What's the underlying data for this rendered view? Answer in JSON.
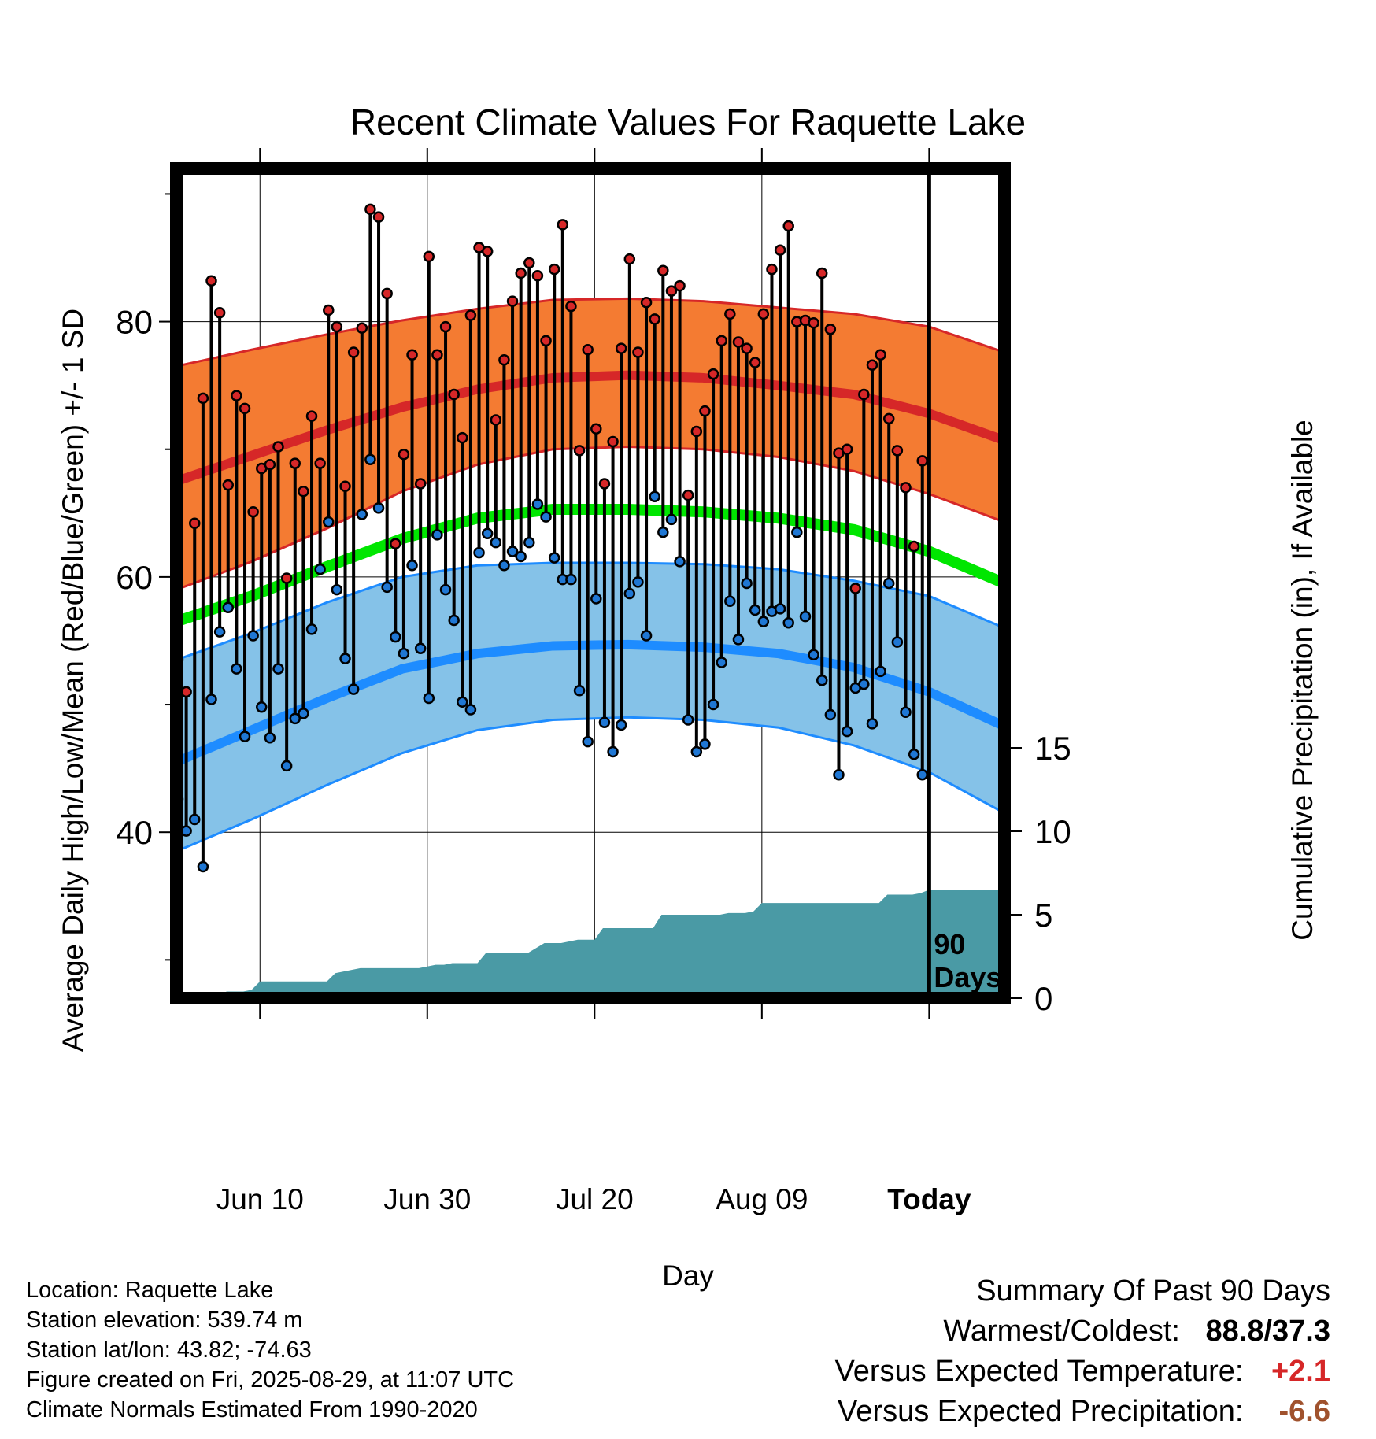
{
  "chart_data": {
    "type": "line",
    "title": "Recent Climate Values For Raquette Lake",
    "xlabel": "Day",
    "ylabel_left": "Average Daily High/Low/Mean (Red/Blue/Green) +/- 1 SD",
    "ylabel_right": "Cumulative Precipitation (in), If Available",
    "y_left_ticks": [
      "40",
      "60",
      "80"
    ],
    "y_right_ticks": [
      "0",
      "5",
      "10",
      "15"
    ],
    "x_tick_labels": [
      "Jun 10",
      "Jun 30",
      "Jul 20",
      "Aug 09",
      "Today"
    ],
    "today_marker": "90 Days",
    "ylim_left": [
      27,
      92
    ],
    "ylim_right": [
      0,
      15
    ],
    "xlim_days": [
      0,
      99
    ],
    "grid": true,
    "normals": {
      "high_mean": [
        67.5,
        69.5,
        71.5,
        73.3,
        74.7,
        75.6,
        75.8,
        75.6,
        75.0,
        74.3,
        72.8,
        70.7
      ],
      "high_upper": [
        76.5,
        77.8,
        79.0,
        80.1,
        81.0,
        81.7,
        81.8,
        81.6,
        81.1,
        80.6,
        79.6,
        77.6
      ],
      "high_lower": [
        59.0,
        61.2,
        63.8,
        66.7,
        68.8,
        70.0,
        70.2,
        70.0,
        69.4,
        68.3,
        66.5,
        64.3
      ],
      "mean": [
        56.5,
        58.5,
        60.8,
        63.0,
        64.6,
        65.3,
        65.3,
        65.1,
        64.6,
        63.7,
        62.0,
        59.5
      ],
      "low_mean": [
        45.5,
        48.0,
        50.5,
        52.8,
        54.0,
        54.6,
        54.7,
        54.5,
        54.0,
        52.9,
        51.0,
        48.3
      ],
      "low_upper": [
        53.5,
        55.6,
        58.0,
        60.0,
        60.9,
        61.1,
        61.1,
        61.0,
        60.6,
        59.7,
        58.5,
        56.0
      ],
      "low_lower": [
        38.5,
        41.0,
        43.7,
        46.2,
        48.0,
        48.8,
        49.0,
        48.8,
        48.2,
        46.8,
        44.7,
        41.5
      ]
    },
    "daily_days": [
      0,
      1,
      2,
      3,
      4,
      5,
      6,
      7,
      8,
      9,
      10,
      11,
      12,
      13,
      14,
      15,
      16,
      17,
      18,
      19,
      20,
      21,
      22,
      23,
      24,
      25,
      26,
      27,
      28,
      29,
      30,
      31,
      32,
      33,
      34,
      35,
      36,
      37,
      38,
      39,
      40,
      41,
      42,
      43,
      44,
      45,
      46,
      47,
      48,
      49,
      50,
      51,
      52,
      53,
      54,
      55,
      56,
      57,
      58,
      59,
      60,
      61,
      62,
      63,
      64,
      65,
      66,
      67,
      68,
      69,
      70,
      71,
      72,
      73,
      74,
      75,
      76,
      77,
      78,
      79,
      80,
      81,
      82,
      83,
      84,
      85,
      86,
      87,
      88,
      89
    ],
    "daily_high": [
      53.5,
      51.0,
      64.2,
      74.0,
      83.2,
      80.7,
      67.2,
      74.2,
      73.2,
      65.1,
      68.5,
      68.8,
      70.2,
      59.9,
      68.9,
      66.7,
      72.6,
      68.9,
      80.9,
      79.6,
      67.1,
      77.6,
      79.5,
      88.8,
      88.2,
      82.2,
      62.6,
      69.6,
      77.4,
      67.3,
      85.1,
      77.4,
      79.6,
      74.3,
      70.9,
      80.5,
      85.8,
      85.5,
      72.3,
      77.0,
      81.6,
      83.8,
      84.6,
      83.6,
      78.5,
      84.1,
      87.6,
      81.2,
      69.9,
      77.8,
      71.6,
      67.3,
      70.6,
      77.9,
      84.9,
      77.6,
      81.5,
      80.2,
      84.0,
      82.4,
      82.8,
      66.4,
      71.4,
      73.0,
      75.9,
      78.5,
      80.6,
      78.4,
      77.9,
      76.8,
      80.6,
      84.1,
      85.6,
      87.5,
      80.0,
      80.1,
      79.9,
      83.8,
      79.4,
      69.7,
      70.0,
      59.1,
      74.3,
      76.6,
      77.4,
      72.4,
      69.9,
      67.0,
      62.4,
      69.1
    ],
    "daily_low": [
      42.6,
      40.1,
      41.0,
      37.3,
      50.4,
      55.7,
      57.6,
      52.8,
      47.5,
      55.4,
      49.8,
      47.4,
      52.8,
      45.2,
      48.9,
      49.3,
      55.9,
      60.6,
      64.3,
      59.0,
      53.6,
      51.2,
      64.9,
      69.2,
      65.4,
      59.2,
      55.3,
      54.0,
      60.9,
      54.4,
      50.5,
      63.3,
      59.0,
      56.6,
      50.2,
      49.6,
      61.9,
      63.4,
      62.7,
      60.9,
      62.0,
      61.6,
      62.7,
      65.7,
      64.7,
      61.5,
      59.8,
      59.8,
      51.1,
      47.1,
      58.3,
      48.6,
      46.3,
      48.4,
      58.7,
      59.6,
      55.4,
      66.3,
      63.5,
      64.5,
      61.2,
      48.8,
      46.3,
      46.9,
      50.0,
      53.3,
      58.1,
      55.1,
      59.5,
      57.4,
      56.5,
      57.3,
      57.5,
      56.4,
      63.5,
      56.9,
      53.9,
      51.9,
      49.2,
      44.5,
      47.9,
      51.3,
      51.6,
      48.5,
      52.6,
      59.5,
      54.9,
      49.4,
      46.1,
      44.5
    ],
    "precip_days": [
      0,
      1,
      2,
      3,
      4,
      5,
      6,
      7,
      8,
      9,
      10,
      11,
      12,
      13,
      14,
      15,
      16,
      17,
      18,
      19,
      20,
      21,
      22,
      23,
      24,
      25,
      26,
      27,
      28,
      29,
      30,
      31,
      32,
      33,
      34,
      35,
      36,
      37,
      38,
      39,
      40,
      41,
      42,
      43,
      44,
      45,
      46,
      47,
      48,
      49,
      50,
      51,
      52,
      53,
      54,
      55,
      56,
      57,
      58,
      59,
      60,
      61,
      62,
      63,
      64,
      65,
      66,
      67,
      68,
      69,
      70,
      71,
      72,
      73,
      74,
      75,
      76,
      77,
      78,
      79,
      80,
      81,
      82,
      83,
      84,
      85,
      86,
      87,
      88,
      89,
      90,
      91,
      92,
      93,
      94,
      95,
      96,
      97,
      98,
      99
    ],
    "precip_cum": [
      0.0,
      0.0,
      0.0,
      0.0,
      0.0,
      0.0,
      0.4,
      0.4,
      0.4,
      0.5,
      1.0,
      1.0,
      1.0,
      1.0,
      1.0,
      1.0,
      1.0,
      1.0,
      1.0,
      1.5,
      1.6,
      1.7,
      1.8,
      1.8,
      1.8,
      1.8,
      1.8,
      1.8,
      1.8,
      1.8,
      1.9,
      2.0,
      2.0,
      2.1,
      2.1,
      2.1,
      2.1,
      2.7,
      2.7,
      2.7,
      2.7,
      2.7,
      2.7,
      3.0,
      3.3,
      3.3,
      3.3,
      3.4,
      3.5,
      3.5,
      3.5,
      4.2,
      4.2,
      4.2,
      4.2,
      4.2,
      4.2,
      4.2,
      5.0,
      5.0,
      5.0,
      5.0,
      5.0,
      5.0,
      5.0,
      5.0,
      5.1,
      5.1,
      5.1,
      5.2,
      5.7,
      5.7,
      5.7,
      5.7,
      5.7,
      5.7,
      5.7,
      5.7,
      5.7,
      5.7,
      5.7,
      5.7,
      5.7,
      5.7,
      5.7,
      6.2,
      6.2,
      6.2,
      6.2,
      6.3,
      6.5,
      6.5,
      6.5,
      6.5,
      6.5,
      6.5,
      6.5,
      6.5,
      6.5,
      6.5
    ]
  },
  "info": {
    "location": "Location: Raquette Lake",
    "elevation": "Station elevation: 539.74 m",
    "latlon": "Station lat/lon: 43.82; -74.63",
    "created": "Figure created on Fri, 2025-08-29, at 11:07 UTC",
    "normals": "Climate Normals Estimated From 1990-2020"
  },
  "summary": {
    "heading": "Summary Of Past 90 Days",
    "extremes_label": "Warmest/Coldest:",
    "extremes_value": "88.8/37.3",
    "temp_label": "Versus Expected Temperature:",
    "temp_value": "+2.1",
    "precip_label": "Versus Expected Precipitation:",
    "precip_value": "-6.6"
  },
  "colors": {
    "high_band": "#f47b32",
    "high_line": "#d62728",
    "mean_line": "#00e600",
    "low_band": "#85c2e8",
    "low_line": "#1e8cff",
    "precip_fill": "#4a9aa5",
    "high_dot": "#d62728",
    "low_dot": "#1f77d4"
  }
}
